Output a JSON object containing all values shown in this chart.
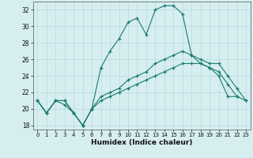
{
  "xlabel": "Humidex (Indice chaleur)",
  "background_color": "#d6eef0",
  "line_color": "#1a7a6e",
  "grid_color": "#b8d8dc",
  "xlim": [
    -0.5,
    23.5
  ],
  "ylim": [
    17.5,
    33.0
  ],
  "yticks": [
    18,
    20,
    22,
    24,
    26,
    28,
    30,
    32
  ],
  "xticks": [
    0,
    1,
    2,
    3,
    4,
    5,
    6,
    7,
    8,
    9,
    10,
    11,
    12,
    13,
    14,
    15,
    16,
    17,
    18,
    19,
    20,
    21,
    22,
    23
  ],
  "series1_x": [
    0,
    1,
    2,
    3,
    4,
    5,
    6,
    7,
    8,
    9,
    10,
    11,
    12,
    13,
    14,
    15,
    16,
    17,
    18,
    19,
    20,
    21,
    22
  ],
  "series1_y": [
    21.0,
    19.5,
    21.0,
    20.5,
    19.5,
    18.0,
    20.0,
    25.0,
    27.0,
    28.5,
    30.5,
    31.0,
    29.0,
    32.0,
    32.5,
    32.5,
    31.5,
    26.5,
    25.5,
    25.0,
    24.0,
    21.5,
    21.5
  ],
  "series2_x": [
    0,
    1,
    2,
    3,
    4,
    5,
    6,
    7,
    8,
    9,
    10,
    11,
    12,
    13,
    14,
    15,
    16,
    17,
    18,
    19,
    20,
    21,
    22,
    23
  ],
  "series2_y": [
    21.0,
    19.5,
    21.0,
    21.0,
    19.5,
    18.0,
    20.0,
    21.5,
    22.0,
    22.5,
    23.5,
    24.0,
    24.5,
    25.5,
    26.0,
    26.5,
    27.0,
    26.5,
    26.0,
    25.5,
    25.5,
    24.0,
    22.5,
    21.0
  ],
  "series3_x": [
    0,
    1,
    2,
    3,
    4,
    5,
    6,
    7,
    8,
    9,
    10,
    11,
    12,
    13,
    14,
    15,
    16,
    17,
    18,
    19,
    20,
    21,
    22,
    23
  ],
  "series3_y": [
    21.0,
    19.5,
    21.0,
    21.0,
    19.5,
    18.0,
    20.0,
    21.0,
    21.5,
    22.0,
    22.5,
    23.0,
    23.5,
    24.0,
    24.5,
    25.0,
    25.5,
    25.5,
    25.5,
    25.0,
    24.5,
    23.0,
    21.5,
    21.0
  ]
}
